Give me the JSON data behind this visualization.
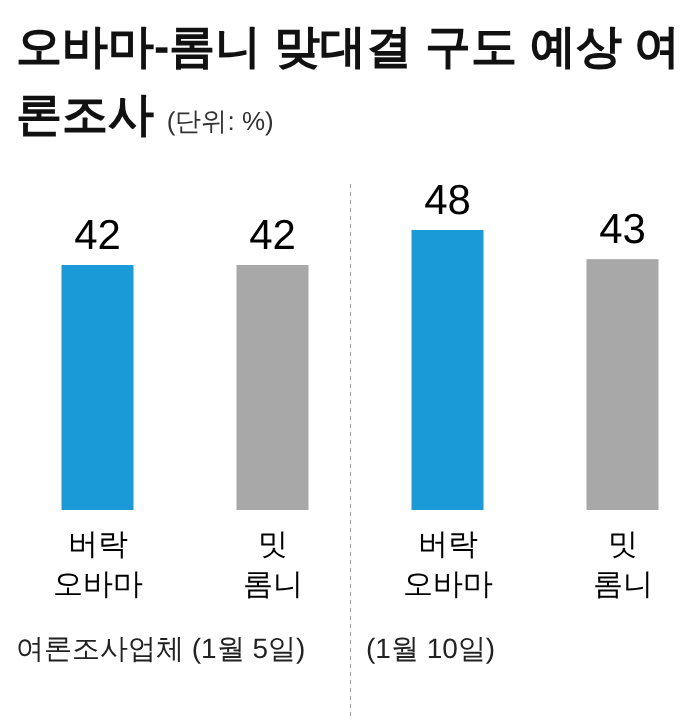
{
  "chart_data": [
    {
      "type": "bar",
      "title": "오바마-롬니 맞대결 구도 예상 여론조사",
      "subtitle": "(단위: %)",
      "categories": [
        "버락 오바마",
        "밋 롬니"
      ],
      "values": [
        42,
        42
      ],
      "colors": [
        "#1a9ad6",
        "#a8a8a8"
      ],
      "data_labels": true,
      "annotations": [
        "여론조사업체 (1월 5일)"
      ]
    },
    {
      "type": "bar",
      "categories": [
        "버락 오바마",
        "밋 롬니"
      ],
      "values": [
        48,
        43
      ],
      "colors": [
        "#1a9ad6",
        "#a8a8a8"
      ],
      "data_labels": true,
      "annotations": [
        "(1월 10일)"
      ]
    }
  ]
}
